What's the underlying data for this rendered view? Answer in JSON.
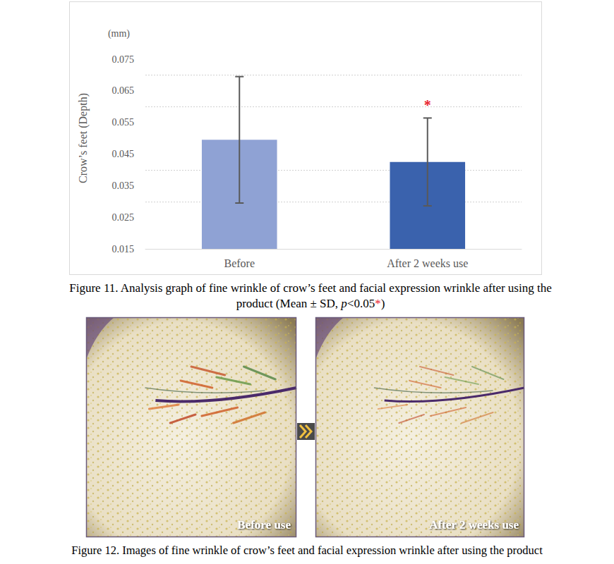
{
  "chart_data": {
    "type": "bar",
    "y_label": "Crow’s feet (Depth)",
    "y_unit": "(mm)",
    "categories": [
      "Before",
      "After 2 weeks use"
    ],
    "values": [
      0.0495,
      0.0425
    ],
    "error": [
      0.02,
      0.0139
    ],
    "colors": [
      "#8fa2d4",
      "#3a62ad"
    ],
    "ylim": [
      0.015,
      0.075
    ],
    "yticks": [
      0.015,
      0.025,
      0.035,
      0.045,
      0.055,
      0.065,
      0.075
    ],
    "grid": true,
    "annotations": [
      {
        "text": "*",
        "category": "After 2 weeks use",
        "color": "#e8202a"
      }
    ]
  },
  "figure_11_caption": [
    {
      "text": "Figure 11. Analysis graph of fine wrinkle of crow’s feet and facial expression wrinkle after using the product (Mean ± SD, "
    },
    {
      "text": "p",
      "style": "italic"
    },
    {
      "text": "<0.05"
    },
    {
      "text": "*",
      "color": "#e8202a"
    },
    {
      "text": ")"
    }
  ],
  "figure_12": {
    "images": [
      {
        "label": "Before use"
      },
      {
        "label": "After 2 weeks use"
      }
    ],
    "caption": "Figure 12. Images of fine wrinkle of crow’s feet and facial expression wrinkle after using the product"
  }
}
